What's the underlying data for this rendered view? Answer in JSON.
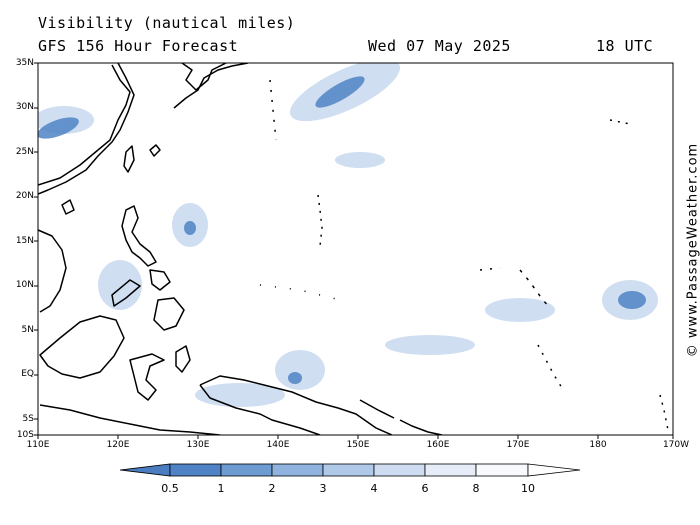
{
  "header": {
    "title": "Visibility (nautical miles)",
    "subtitle": "GFS 156 Hour Forecast",
    "date": "Wed 07 May 2025",
    "time": "18 UTC"
  },
  "credit": "© www.PassageWeather.com",
  "lat_labels": [
    "35N",
    "30N",
    "25N",
    "20N",
    "15N",
    "10N",
    "5N",
    "EQ",
    "5S",
    "10S"
  ],
  "lon_labels": [
    "110E",
    "120E",
    "130E",
    "140E",
    "150E",
    "160E",
    "170E",
    "180",
    "170W"
  ],
  "colorbar": {
    "labels": [
      "0.5",
      "1",
      "2",
      "3",
      "4",
      "6",
      "8",
      "10"
    ],
    "colors": [
      "#4a7cbf",
      "#4f83c5",
      "#6d9bd2",
      "#8fb2de",
      "#b0c9e8",
      "#cfdcf1",
      "#e6edf8",
      "#f7f9fd"
    ]
  },
  "colors": {
    "coast": "#000000",
    "haze_dark": "#3f74bd",
    "haze_light": "#c3d6ee"
  }
}
